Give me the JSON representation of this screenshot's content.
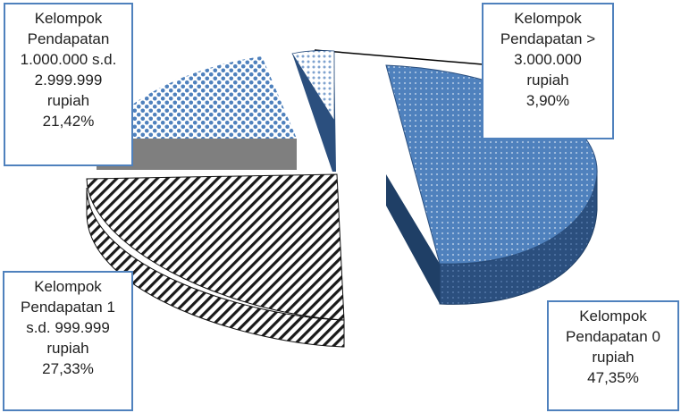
{
  "chart_data": {
    "type": "pie",
    "style": "3d-exploded",
    "title": "",
    "slices": [
      {
        "lines": [
          "Kelompok",
          "Pendapatan 0",
          "rupiah"
        ],
        "percent_label": "47,35%",
        "value": 47.35,
        "color": "#4f81bd",
        "side_color": "#2b4f7e",
        "pattern": "fine-dots"
      },
      {
        "lines": [
          "Kelompok",
          "Pendapatan 1",
          "s.d. 999.999",
          "rupiah"
        ],
        "percent_label": "27,33%",
        "value": 27.33,
        "color": "#1a1a1a",
        "side_color": "#1a1a1a",
        "pattern": "diagonal-stripes"
      },
      {
        "lines": [
          "Kelompok",
          "Pendapatan",
          "1.000.000 s.d.",
          "2.999.999",
          "rupiah"
        ],
        "percent_label": "21,42%",
        "value": 21.42,
        "color": "#4f81bd",
        "side_color": "#7f7f7f",
        "pattern": "dot-grid"
      },
      {
        "lines": [
          "Kelompok",
          "Pendapatan >",
          "3.000.000",
          "rupiah"
        ],
        "percent_label": "3,90%",
        "value": 3.9,
        "color": "#b8cce4",
        "side_color": "#2b4f7e",
        "pattern": "sparse-dots"
      }
    ]
  }
}
